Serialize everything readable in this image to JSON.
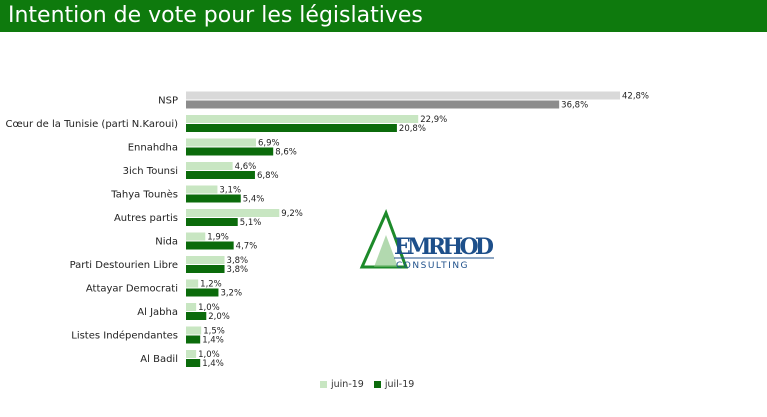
{
  "header": {
    "title": "Intention de vote pour les législatives"
  },
  "colors": {
    "title_bg": "#0e7a0d",
    "juin": "#c8e6c2",
    "juil": "#0b6b0b",
    "nsp_juin": "#d9d9d9",
    "nsp_juil": "#8c8c8c"
  },
  "logo": {
    "name": "EMRHOD",
    "subtitle": "CONSULTING",
    "icon": "triangle-logo-icon"
  },
  "chart_data": {
    "type": "bar",
    "orientation": "horizontal",
    "categories": [
      "NSP",
      "Cœur de la Tunisie (parti N.Karoui)",
      "Ennahdha",
      "3ich Tounsi",
      "Tahya Tounès",
      "Autres partis",
      "Nida",
      "Parti Destourien Libre",
      "Attayar Democrati",
      "Al Jabha",
      "Listes Indépendantes",
      "Al Badil"
    ],
    "series": [
      {
        "name": "juin-19",
        "values": [
          42.8,
          22.9,
          6.9,
          4.6,
          3.1,
          9.2,
          1.9,
          3.8,
          1.2,
          1.0,
          1.5,
          1.0
        ],
        "labels": [
          "42,8%",
          "22,9%",
          "6,9%",
          "4,6%",
          "3,1%",
          "9,2%",
          "1,9%",
          "3,8%",
          "1,2%",
          "1,0%",
          "1,5%",
          "1,0%"
        ]
      },
      {
        "name": "juil-19",
        "values": [
          36.8,
          20.8,
          8.6,
          6.8,
          5.4,
          5.1,
          4.7,
          3.8,
          3.2,
          2.0,
          1.4,
          1.4
        ],
        "labels": [
          "36,8%",
          "20,8%",
          "8,6%",
          "6,8%",
          "5,4%",
          "5,1%",
          "4,7%",
          "3,8%",
          "3,2%",
          "2,0%",
          "1,4%",
          "1,4%"
        ]
      }
    ],
    "xlim": [
      0,
      42.8
    ],
    "grid": false,
    "legend_position": "bottom"
  }
}
